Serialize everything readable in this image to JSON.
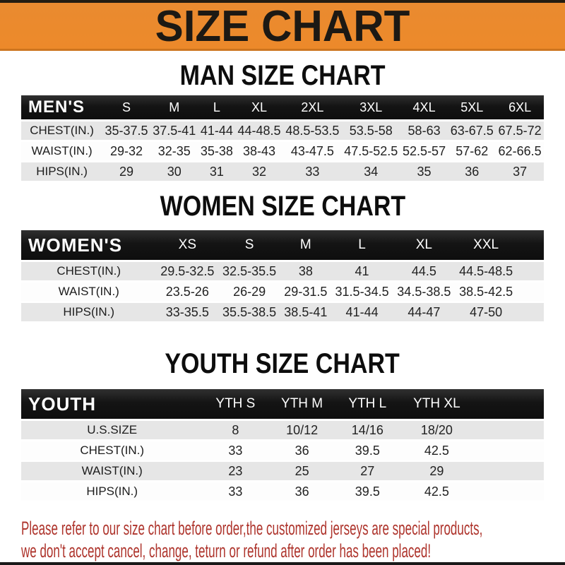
{
  "banner": {
    "title": "SIZE CHART",
    "bg_color": "#EC8A2B",
    "text_color": "#1C1914"
  },
  "sections": [
    {
      "heading": "MAN SIZE CHART",
      "table": {
        "label": "MEN'S",
        "columns": [
          "S",
          "M",
          "L",
          "XL",
          "2XL",
          "3XL",
          "4XL",
          "5XL",
          "6XL"
        ],
        "rows": [
          {
            "label": "CHEST(IN.)",
            "values": [
              "35-37.5",
              "37.5-41",
              "41-44",
              "44-48.5",
              "48.5-53.5",
              "53.5-58",
              "58-63",
              "63-67.5",
              "67.5-72"
            ]
          },
          {
            "label": "WAIST(IN.)",
            "values": [
              "29-32",
              "32-35",
              "35-38",
              "38-43",
              "43-47.5",
              "47.5-52.5",
              "52.5-57",
              "57-62",
              "62-66.5"
            ]
          },
          {
            "label": "HIPS(IN.)",
            "values": [
              "29",
              "30",
              "31",
              "32",
              "33",
              "34",
              "35",
              "36",
              "37"
            ]
          }
        ]
      }
    },
    {
      "heading": "WOMEN SIZE CHART",
      "table": {
        "label": "WOMEN'S",
        "columns": [
          "XS",
          "S",
          "M",
          "L",
          "XL",
          "XXL"
        ],
        "rows": [
          {
            "label": "CHEST(IN.)",
            "values": [
              "29.5-32.5",
              "32.5-35.5",
              "38",
              "41",
              "44.5",
              "44.5-48.5"
            ]
          },
          {
            "label": "WAIST(IN.)",
            "values": [
              "23.5-26",
              "26-29",
              "29-31.5",
              "31.5-34.5",
              "34.5-38.5",
              "38.5-42.5"
            ]
          },
          {
            "label": "HIPS(IN.)",
            "values": [
              "33-35.5",
              "35.5-38.5",
              "38.5-41",
              "41-44",
              "44-47",
              "47-50"
            ]
          }
        ]
      }
    },
    {
      "heading": "YOUTH SIZE CHART",
      "table": {
        "label": "YOUTH",
        "columns": [
          "YTH S",
          "YTH M",
          "YTH L",
          "YTH XL"
        ],
        "rows": [
          {
            "label": "U.S.SIZE",
            "values": [
              "8",
              "10/12",
              "14/16",
              "18/20"
            ]
          },
          {
            "label": "CHEST(IN.)",
            "values": [
              "33",
              "36",
              "39.5",
              "42.5"
            ]
          },
          {
            "label": "WAIST(IN.)",
            "values": [
              "23",
              "25",
              "27",
              "29"
            ]
          },
          {
            "label": "HIPS(IN.)",
            "values": [
              "33",
              "36",
              "39.5",
              "42.5"
            ]
          }
        ]
      }
    }
  ],
  "footer": {
    "line1": "Please refer to our size chart before order,the customized jerseys are special products,",
    "line2": "we don't accept cancel, change, teturn or refund after order has been placed!",
    "text_color": "#AE342C"
  },
  "colors": {
    "header_bar": "#161616",
    "row_shaded": "#E6E6E6",
    "row_plain": "#FDFDFD"
  }
}
